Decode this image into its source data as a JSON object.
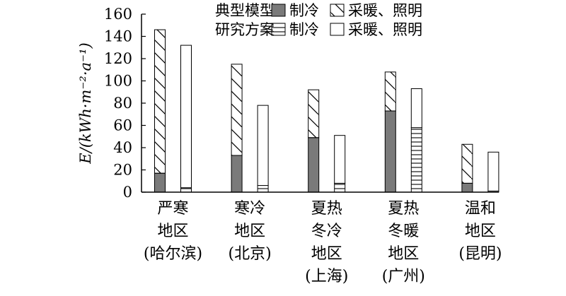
{
  "chart_data": {
    "type": "bar",
    "stacked": true,
    "ylabel": "E/(kWh·m⁻²·a⁻¹)",
    "ylim": [
      0,
      160
    ],
    "yticks": [
      0,
      20,
      40,
      60,
      80,
      100,
      120,
      140,
      160
    ],
    "grid": false,
    "legend_position": "top-right",
    "legend": {
      "row1": {
        "label": "典型模型",
        "cooling": "制冷",
        "other": "采暖、照明"
      },
      "row2": {
        "label": "研究方案",
        "cooling": "制冷",
        "other": "采暖、照明"
      }
    },
    "categories": [
      [
        "严寒",
        "地区",
        "(哈尔滨)"
      ],
      [
        "寒冷",
        "地区",
        "(北京)"
      ],
      [
        "夏热",
        "冬冷",
        "地区",
        "(上海)"
      ],
      [
        "夏热",
        "冬暖",
        "地区",
        "(广州)"
      ],
      [
        "温和",
        "地区",
        "(昆明)"
      ]
    ],
    "series": [
      {
        "name": "典型模型",
        "stack": [
          {
            "part": "制冷",
            "values": [
              17,
              33,
              49,
              73,
              8
            ]
          },
          {
            "part": "采暖、照明",
            "values": [
              129,
              82,
              43,
              35,
              35
            ]
          }
        ]
      },
      {
        "name": "研究方案",
        "stack": [
          {
            "part": "制冷",
            "values": [
              4,
              6,
              8,
              58,
              1
            ]
          },
          {
            "part": "采暖、照明",
            "values": [
              128,
              72,
              43,
              35,
              35
            ]
          }
        ]
      }
    ],
    "colors": {
      "typical_cooling": "#7a7a7a",
      "axis": "#000000",
      "background": "#ffffff"
    }
  }
}
